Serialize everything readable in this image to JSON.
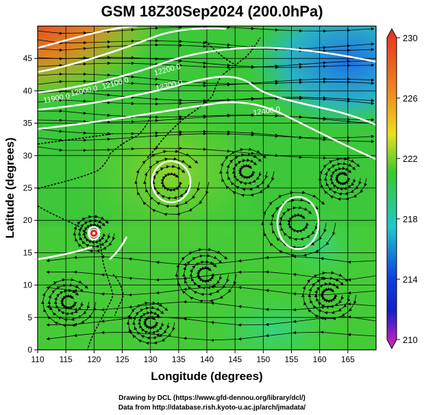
{
  "title": "GSM 18Z30Sep2024 (200.0hPa)",
  "credits": {
    "line1": "Drawing by DCL (https://www.gfd-dennou.org/library/dcl/)",
    "line2": "Data from http://database.rish.kyoto-u.ac.jp/arch/jmadata/"
  },
  "map": {
    "xlabel": "Longitude (degrees)",
    "ylabel": "Latitude  (degrees)",
    "lon_range": [
      110,
      170
    ],
    "lat_range": [
      0,
      50
    ],
    "lon_ticks": [
      "110",
      "115",
      "120",
      "125",
      "130",
      "135",
      "140",
      "145",
      "150",
      "155",
      "160",
      "165"
    ],
    "lat_ticks": [
      "0",
      "5",
      "10",
      "15",
      "20",
      "25",
      "30",
      "35",
      "40",
      "45"
    ],
    "contour_labels": [
      "11900.0",
      "12000.0",
      "12100.0",
      "12200.0",
      "12300.0",
      "12400.0"
    ],
    "grid": true,
    "field": "temperature shading with streamlines and geopotential height contours"
  },
  "colorbar": {
    "ticks": [
      "230",
      "226",
      "222",
      "218",
      "214",
      "210"
    ],
    "values": [
      230,
      226,
      222,
      218,
      214,
      210
    ],
    "min": 210,
    "max": 230,
    "colors": {
      "high": "#e53020",
      "orange": "#f08a20",
      "yellow": "#e8e020",
      "green": "#38c830",
      "cyan": "#20c8c8",
      "blue": "#1020c8",
      "magenta": "#e020c0"
    }
  }
}
